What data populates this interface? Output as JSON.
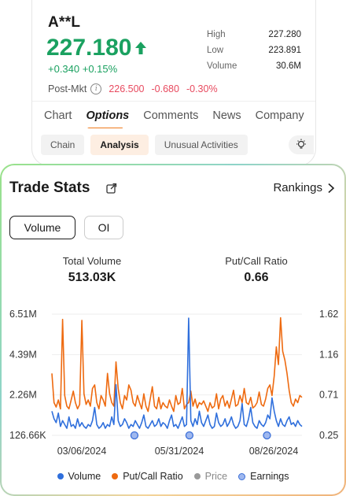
{
  "quote": {
    "ticker": "A**L",
    "price": "227.180",
    "change": "+0.340 +0.15%",
    "high_label": "High",
    "high": "227.280",
    "low_label": "Low",
    "low": "223.891",
    "volume_label": "Volume",
    "volume": "30.6M",
    "postmkt_label": "Post-Mkt",
    "postmkt_price": "226.500",
    "postmkt_change": "-0.680",
    "postmkt_pct": "-0.30%"
  },
  "tabs": [
    "Chart",
    "Options",
    "Comments",
    "News",
    "Company"
  ],
  "subtabs": [
    "Chain",
    "Analysis",
    "Unusual Activities"
  ],
  "trade_stats": {
    "title": "Trade Stats",
    "rankings": "Rankings",
    "toggle_volume": "Volume",
    "toggle_oi": "OI",
    "total_volume_label": "Total Volume",
    "total_volume": "513.03K",
    "pcr_label": "Put/Call Ratio",
    "pcr": "0.66"
  },
  "legend": {
    "volume": "Volume",
    "pcr": "Put/Call Ratio",
    "price": "Price",
    "earnings": "Earnings"
  },
  "colors": {
    "green": "#1aa160",
    "red": "#e84a5f",
    "volume": "#2f6fdc",
    "pcr": "#ee6a10",
    "accent": "#f07a1b"
  },
  "chart_data": {
    "type": "line",
    "y_left_ticks": [
      "6.51M",
      "4.39M",
      "2.26M",
      "126.66K"
    ],
    "y_right_ticks": [
      "1.62",
      "1.16",
      "0.71",
      "0.25"
    ],
    "x_ticks": [
      "03/06/2024",
      "05/31/2024",
      "08/26/2024"
    ],
    "ylim_left": [
      126660,
      6510000
    ],
    "ylim_right": [
      0.25,
      1.62
    ],
    "series": [
      {
        "name": "Volume",
        "axis": "left",
        "values": [
          1400000,
          1000000,
          800000,
          1300000,
          600000,
          900000,
          700000,
          500000,
          1100000,
          600000,
          700000,
          500000,
          1000000,
          600000,
          800000,
          600000,
          500000,
          700000,
          600000,
          900000,
          1600000,
          700000,
          500000,
          600000,
          800000,
          500000,
          700000,
          600000,
          1100000,
          700000,
          2800000,
          900000,
          600000,
          700000,
          1000000,
          800000,
          500000,
          700000,
          600000,
          900000,
          700000,
          500000,
          800000,
          1200000,
          600000,
          500000,
          700000,
          900000,
          600000,
          700000,
          1000000,
          600000,
          800000,
          700000,
          500000,
          900000,
          1200000,
          600000,
          700000,
          500000,
          800000,
          1100000,
          600000,
          700000,
          6300000,
          900000,
          600000,
          1000000,
          700000,
          1400000,
          800000,
          600000,
          900000,
          1200000,
          700000,
          500000,
          600000,
          1300000,
          800000,
          600000,
          700000,
          1000000,
          600000,
          800000,
          1100000,
          700000,
          500000,
          600000,
          900000,
          1800000,
          700000,
          600000,
          1000000,
          1600000,
          800000,
          600000,
          500000,
          900000,
          700000,
          600000,
          800000,
          1200000,
          1000000,
          2100000,
          1400000,
          900000,
          600000,
          1000000,
          700000,
          600000,
          900000,
          1100000,
          700000,
          800000,
          600000,
          900000,
          700000,
          600000
        ]
      },
      {
        "name": "Put/Call Ratio",
        "axis": "right",
        "values": [
          0.95,
          0.62,
          0.57,
          0.65,
          0.55,
          1.56,
          0.7,
          0.58,
          0.55,
          0.65,
          0.75,
          0.62,
          0.55,
          0.6,
          1.55,
          0.72,
          0.6,
          0.65,
          0.58,
          0.78,
          0.82,
          0.62,
          0.55,
          0.7,
          0.65,
          0.58,
          0.95,
          0.72,
          0.62,
          0.58,
          1.08,
          0.78,
          0.62,
          0.55,
          0.7,
          0.65,
          0.82,
          0.76,
          0.62,
          0.58,
          0.7,
          0.62,
          0.55,
          0.72,
          0.58,
          0.52,
          0.66,
          0.8,
          0.58,
          0.55,
          0.68,
          0.55,
          0.62,
          0.58,
          0.56,
          0.65,
          0.58,
          0.52,
          0.7,
          0.6,
          0.62,
          0.78,
          0.55,
          0.6,
          0.62,
          0.75,
          0.58,
          0.66,
          0.56,
          0.62,
          0.6,
          0.64,
          0.58,
          0.52,
          0.62,
          0.56,
          0.58,
          0.72,
          0.55,
          0.66,
          0.7,
          0.58,
          0.64,
          0.56,
          0.66,
          0.76,
          0.58,
          0.6,
          0.7,
          0.62,
          0.78,
          0.62,
          0.6,
          0.68,
          0.56,
          0.58,
          0.62,
          0.74,
          0.6,
          0.58,
          0.66,
          0.78,
          0.82,
          0.7,
          0.92,
          1.25,
          1.05,
          1.58,
          1.2,
          1.1,
          0.95,
          0.76,
          0.62,
          0.58,
          0.66,
          0.62,
          0.7,
          0.68
        ]
      }
    ],
    "earnings_markers": [
      0.33,
      0.55,
      0.86
    ]
  }
}
